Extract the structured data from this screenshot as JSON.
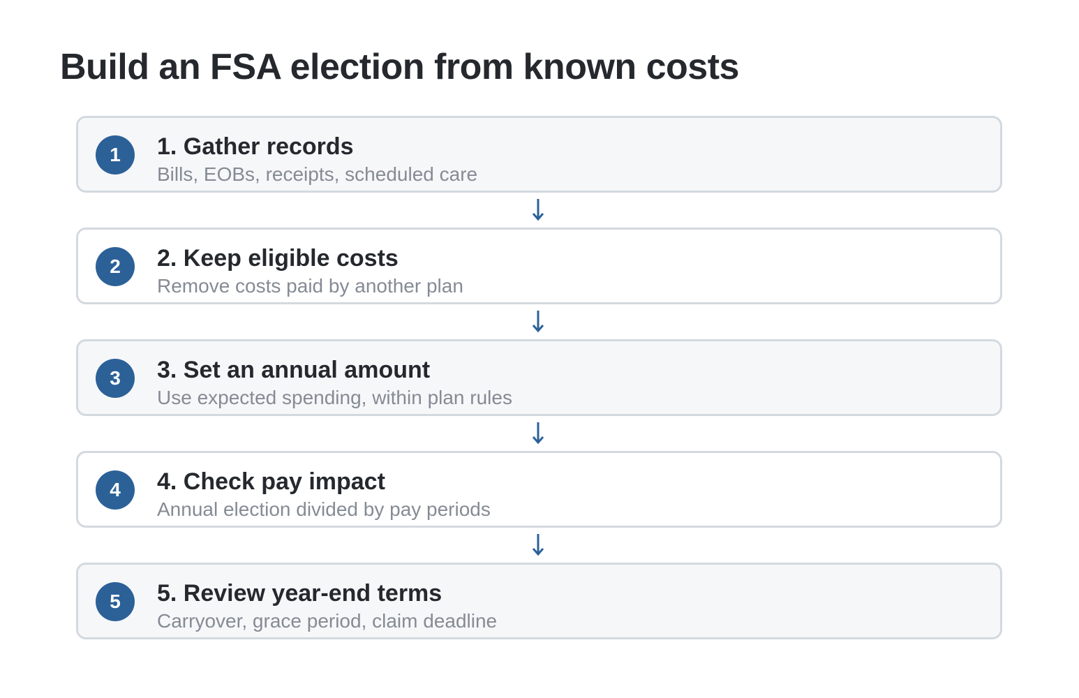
{
  "title": "Build an FSA election from known costs",
  "colors": {
    "badge": "#2c6198",
    "arrow": "#2c6198",
    "card_border": "#d3d9df",
    "card_shaded": "#f6f7f9",
    "title_text": "#25282d",
    "desc_text": "#858b94"
  },
  "steps": [
    {
      "number": "1",
      "title": "1. Gather records",
      "description": "Bills, EOBs, receipts, scheduled care"
    },
    {
      "number": "2",
      "title": "2. Keep eligible costs",
      "description": "Remove costs paid by another plan"
    },
    {
      "number": "3",
      "title": "3. Set an annual amount",
      "description": "Use expected spending, within plan rules"
    },
    {
      "number": "4",
      "title": "4. Check pay impact",
      "description": "Annual election divided by pay periods"
    },
    {
      "number": "5",
      "title": "5. Review year-end terms",
      "description": "Carryover, grace period, claim deadline"
    }
  ],
  "connector_icon": "arrow-down-icon"
}
